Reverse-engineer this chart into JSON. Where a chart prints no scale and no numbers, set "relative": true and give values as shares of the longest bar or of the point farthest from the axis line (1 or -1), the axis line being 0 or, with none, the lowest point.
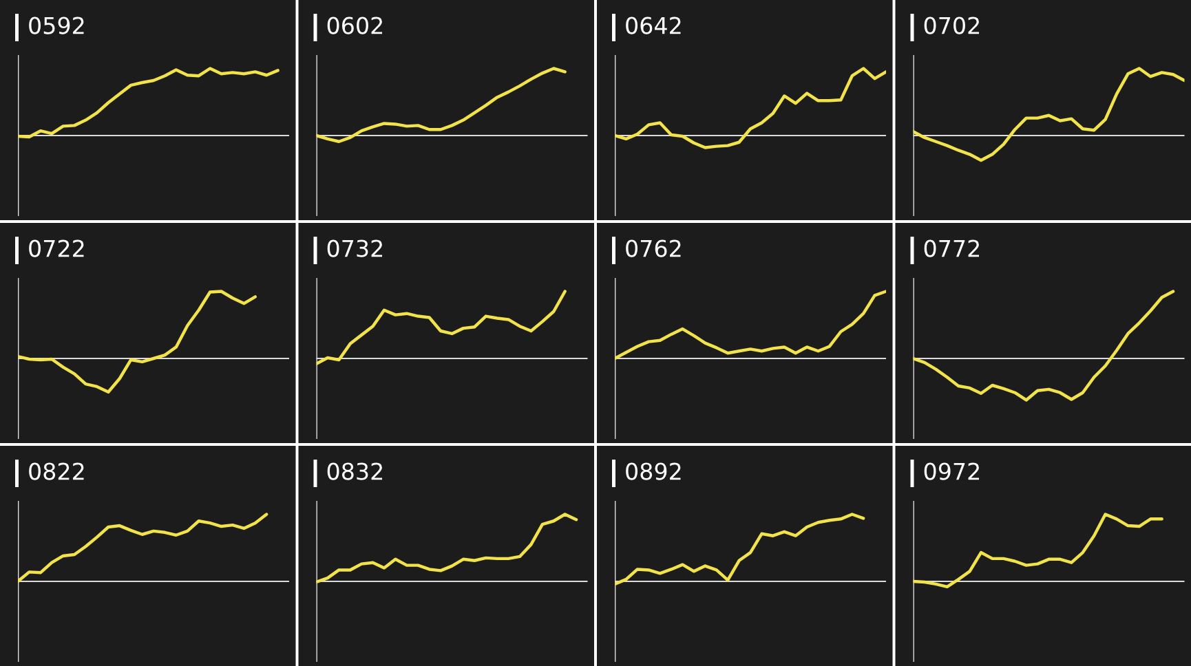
{
  "chart_data": [
    {
      "type": "line",
      "title": "0592",
      "relative": true,
      "categories": [
        null,
        null,
        null,
        null,
        null,
        null,
        null,
        null,
        null,
        null,
        null,
        null,
        null,
        null,
        null,
        null,
        null,
        null,
        null,
        null,
        null,
        null,
        null,
        null,
        null
      ],
      "series": [
        {
          "color": "#f2e34a",
          "values": [
            -0.01,
            -0.02,
            0.07,
            0.03,
            0.14,
            0.15,
            0.23,
            0.34,
            0.49,
            0.62,
            0.75,
            0.79,
            0.82,
            0.89,
            0.98,
            0.9,
            0.89,
            1.0,
            0.92,
            0.94,
            0.92,
            0.95,
            0.9,
            0.97,
            null
          ]
        }
      ]
    },
    {
      "type": "line",
      "title": "0602",
      "relative": true,
      "categories": [
        null,
        null,
        null,
        null,
        null,
        null,
        null,
        null,
        null,
        null,
        null,
        null,
        null,
        null,
        null,
        null,
        null,
        null,
        null,
        null,
        null,
        null,
        null,
        null,
        null
      ],
      "series": [
        {
          "color": "#f2e34a",
          "values": [
            0,
            -0.05,
            -0.09,
            -0.03,
            0.07,
            0.13,
            0.18,
            0.17,
            0.14,
            0.15,
            0.09,
            0.09,
            0.15,
            0.23,
            0.34,
            0.45,
            0.57,
            0.65,
            0.74,
            0.84,
            0.93,
            1.0,
            0.95,
            null,
            null
          ]
        }
      ]
    },
    {
      "type": "line",
      "title": "0642",
      "relative": true,
      "categories": [
        null,
        null,
        null,
        null,
        null,
        null,
        null,
        null,
        null,
        null,
        null,
        null,
        null,
        null,
        null,
        null,
        null,
        null,
        null,
        null,
        null,
        null,
        null,
        null,
        null
      ],
      "series": [
        {
          "color": "#f2e34a",
          "values": [
            0,
            -0.05,
            0.02,
            0.16,
            0.19,
            0.01,
            -0.01,
            -0.11,
            -0.18,
            -0.16,
            -0.15,
            -0.1,
            0.1,
            0.19,
            0.33,
            0.59,
            0.48,
            0.63,
            0.52,
            0.52,
            0.53,
            0.89,
            1.0,
            0.85,
            0.95
          ]
        }
      ]
    },
    {
      "type": "line",
      "title": "0702",
      "relative": true,
      "categories": [
        null,
        null,
        null,
        null,
        null,
        null,
        null,
        null,
        null,
        null,
        null,
        null,
        null,
        null,
        null,
        null,
        null,
        null,
        null,
        null,
        null,
        null,
        null,
        null,
        null
      ],
      "series": [
        {
          "color": "#f2e34a",
          "values": [
            0.06,
            -0.03,
            -0.09,
            -0.15,
            -0.22,
            -0.28,
            -0.37,
            -0.28,
            -0.13,
            0.09,
            0.26,
            0.26,
            0.3,
            0.22,
            0.25,
            0.1,
            0.08,
            0.24,
            0.62,
            0.92,
            1.0,
            0.88,
            0.94,
            0.91,
            0.82
          ]
        }
      ]
    },
    {
      "type": "line",
      "title": "0722",
      "relative": true,
      "categories": [
        null,
        null,
        null,
        null,
        null,
        null,
        null,
        null,
        null,
        null,
        null,
        null,
        null,
        null,
        null,
        null,
        null,
        null,
        null,
        null,
        null,
        null,
        null,
        null,
        null
      ],
      "series": [
        {
          "color": "#f2e34a",
          "values": [
            0.03,
            -0.01,
            -0.02,
            -0.01,
            -0.13,
            -0.23,
            -0.38,
            -0.42,
            -0.5,
            -0.3,
            -0.02,
            -0.05,
            0,
            0.05,
            0.17,
            0.49,
            0.72,
            0.99,
            1.0,
            0.9,
            0.82,
            0.92,
            null,
            null,
            null
          ]
        }
      ]
    },
    {
      "type": "line",
      "title": "0732",
      "relative": true,
      "categories": [
        null,
        null,
        null,
        null,
        null,
        null,
        null,
        null,
        null,
        null,
        null,
        null,
        null,
        null,
        null,
        null,
        null,
        null,
        null,
        null,
        null,
        null,
        null,
        null,
        null
      ],
      "series": [
        {
          "color": "#f2e34a",
          "values": [
            -0.08,
            0.01,
            -0.02,
            0.22,
            0.35,
            0.48,
            0.72,
            0.65,
            0.67,
            0.63,
            0.61,
            0.41,
            0.37,
            0.45,
            0.47,
            0.63,
            0.6,
            0.58,
            0.48,
            0.41,
            0.55,
            0.7,
            1.0,
            null,
            null
          ]
        }
      ]
    },
    {
      "type": "line",
      "title": "0762",
      "relative": true,
      "categories": [
        null,
        null,
        null,
        null,
        null,
        null,
        null,
        null,
        null,
        null,
        null,
        null,
        null,
        null,
        null,
        null,
        null,
        null,
        null,
        null,
        null,
        null,
        null,
        null,
        null
      ],
      "series": [
        {
          "color": "#f2e34a",
          "values": [
            0,
            0.09,
            0.18,
            0.25,
            0.27,
            0.36,
            0.44,
            0.34,
            0.23,
            0.16,
            0.08,
            0.11,
            0.14,
            0.11,
            0.15,
            0.17,
            0.08,
            0.17,
            0.11,
            0.18,
            0.4,
            0.51,
            0.67,
            0.94,
            1.0
          ]
        }
      ]
    },
    {
      "type": "line",
      "title": "0772",
      "relative": true,
      "categories": [
        null,
        null,
        null,
        null,
        null,
        null,
        null,
        null,
        null,
        null,
        null,
        null,
        null,
        null,
        null,
        null,
        null,
        null,
        null,
        null,
        null,
        null,
        null,
        null,
        null
      ],
      "series": [
        {
          "color": "#f2e34a",
          "values": [
            0,
            -0.06,
            -0.16,
            -0.28,
            -0.41,
            -0.44,
            -0.52,
            -0.4,
            -0.45,
            -0.51,
            -0.62,
            -0.48,
            -0.46,
            -0.51,
            -0.61,
            -0.51,
            -0.28,
            -0.11,
            0.12,
            0.37,
            0.53,
            0.71,
            0.91,
            1.0,
            null
          ]
        }
      ]
    },
    {
      "type": "line",
      "title": "0822",
      "relative": true,
      "categories": [
        null,
        null,
        null,
        null,
        null,
        null,
        null,
        null,
        null,
        null,
        null,
        null,
        null,
        null,
        null,
        null,
        null,
        null,
        null,
        null,
        null,
        null,
        null,
        null,
        null
      ],
      "series": [
        {
          "color": "#f2e34a",
          "values": [
            0,
            0.14,
            0.13,
            0.28,
            0.38,
            0.4,
            0.52,
            0.66,
            0.81,
            0.83,
            0.76,
            0.7,
            0.75,
            0.73,
            0.69,
            0.75,
            0.9,
            0.87,
            0.82,
            0.84,
            0.79,
            0.87,
            1.0,
            null,
            null
          ]
        }
      ]
    },
    {
      "type": "line",
      "title": "0832",
      "relative": true,
      "categories": [
        null,
        null,
        null,
        null,
        null,
        null,
        null,
        null,
        null,
        null,
        null,
        null,
        null,
        null,
        null,
        null,
        null,
        null,
        null,
        null,
        null,
        null,
        null,
        null,
        null
      ],
      "series": [
        {
          "color": "#f2e34a",
          "values": [
            -0.01,
            0.05,
            0.17,
            0.17,
            0.26,
            0.28,
            0.2,
            0.33,
            0.24,
            0.24,
            0.18,
            0.16,
            0.23,
            0.33,
            0.31,
            0.35,
            0.34,
            0.34,
            0.37,
            0.55,
            0.85,
            0.9,
            1.0,
            0.92,
            null
          ]
        }
      ]
    },
    {
      "type": "line",
      "title": "0892",
      "relative": true,
      "categories": [
        null,
        null,
        null,
        null,
        null,
        null,
        null,
        null,
        null,
        null,
        null,
        null,
        null,
        null,
        null,
        null,
        null,
        null,
        null,
        null,
        null,
        null,
        null,
        null,
        null
      ],
      "series": [
        {
          "color": "#f2e34a",
          "values": [
            -0.04,
            0.03,
            0.18,
            0.17,
            0.12,
            0.18,
            0.25,
            0.15,
            0.23,
            0.17,
            0.02,
            0.31,
            0.43,
            0.71,
            0.68,
            0.74,
            0.68,
            0.81,
            0.88,
            0.91,
            0.93,
            1.0,
            0.94,
            null,
            null
          ]
        }
      ]
    },
    {
      "type": "line",
      "title": "0972",
      "relative": true,
      "categories": [
        null,
        null,
        null,
        null,
        null,
        null,
        null,
        null,
        null,
        null,
        null,
        null,
        null,
        null,
        null,
        null,
        null,
        null,
        null,
        null,
        null,
        null,
        null,
        null,
        null
      ],
      "series": [
        {
          "color": "#f2e34a",
          "values": [
            0,
            -0.01,
            -0.04,
            -0.08,
            0.03,
            0.15,
            0.43,
            0.34,
            0.34,
            0.3,
            0.24,
            0.26,
            0.33,
            0.33,
            0.28,
            0.43,
            0.68,
            1.0,
            0.93,
            0.83,
            0.82,
            0.93,
            0.93,
            null,
            null
          ]
        }
      ]
    }
  ]
}
